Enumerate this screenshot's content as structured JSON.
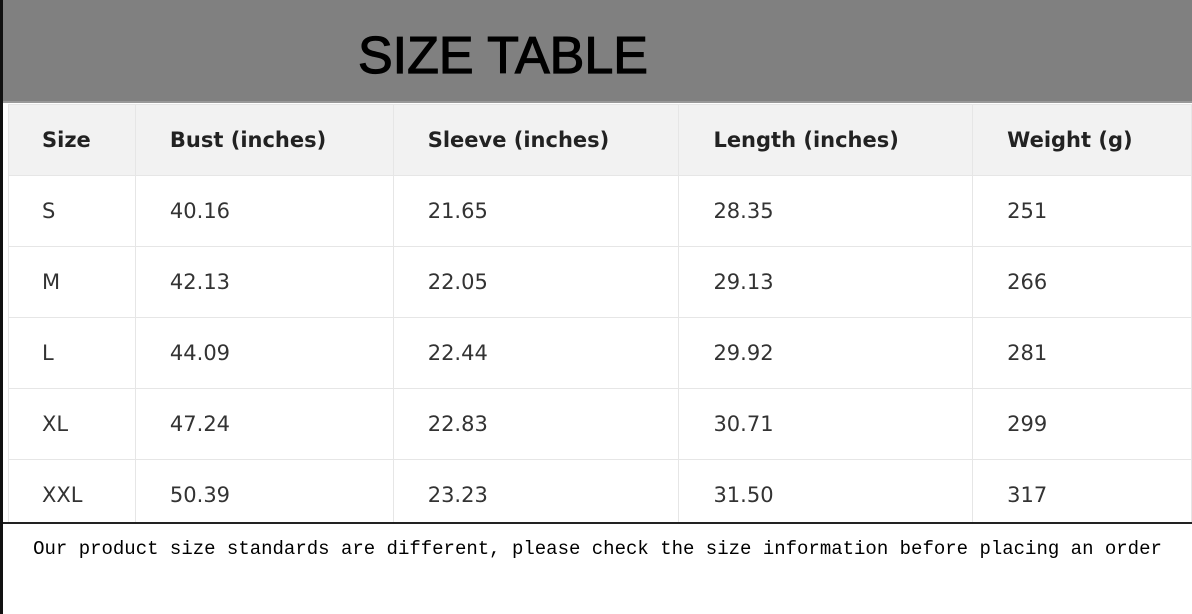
{
  "title": "SIZE TABLE",
  "headers": [
    "Size",
    "Bust (inches)",
    "Sleeve (inches)",
    "Length (inches)",
    "Weight (g)"
  ],
  "rows": [
    [
      "S",
      "40.16",
      "21.65",
      "28.35",
      "251"
    ],
    [
      "M",
      "42.13",
      "22.05",
      "29.13",
      "266"
    ],
    [
      "L",
      "44.09",
      "22.44",
      "29.92",
      "281"
    ],
    [
      "XL",
      "47.24",
      "22.83",
      "30.71",
      "299"
    ],
    [
      "XXL",
      "50.39",
      "23.23",
      "31.50",
      "317"
    ]
  ],
  "note": "Our product size standards are different, please check the size information before placing an order"
}
